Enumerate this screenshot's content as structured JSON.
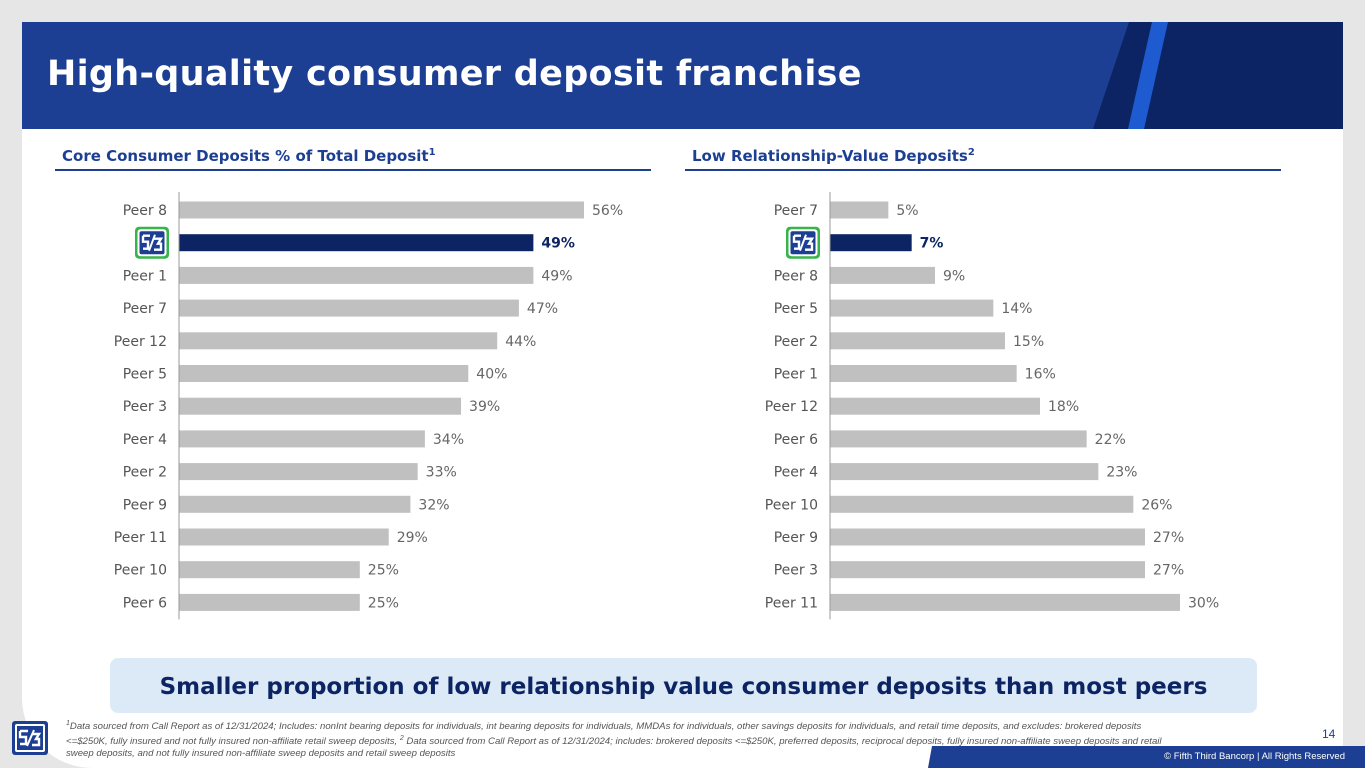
{
  "title": "High-quality consumer deposit franchise",
  "left_section": {
    "title": "Core Consumer Deposits % of Total Deposit",
    "sup": "1"
  },
  "right_section": {
    "title": "Low Relationship-Value Deposits",
    "sup": "2"
  },
  "chart_data": [
    {
      "type": "bar",
      "orientation": "horizontal",
      "title": "Core Consumer Deposits % of Total Deposit",
      "categories": [
        "Peer 8",
        "Fifth Third",
        "Peer 1",
        "Peer 7",
        "Peer 12",
        "Peer 5",
        "Peer 3",
        "Peer 4",
        "Peer 2",
        "Peer 9",
        "Peer 11",
        "Peer 10",
        "Peer 6"
      ],
      "values": [
        56,
        49,
        49,
        47,
        44,
        40,
        39,
        34,
        33,
        32,
        29,
        25,
        25
      ],
      "labels": [
        "56%",
        "49%",
        "49%",
        "47%",
        "44%",
        "40%",
        "39%",
        "34%",
        "33%",
        "32%",
        "29%",
        "25%",
        "25%"
      ],
      "highlight_index": 1,
      "xlim": [
        0,
        56
      ]
    },
    {
      "type": "bar",
      "orientation": "horizontal",
      "title": "Low Relationship-Value Deposits",
      "categories": [
        "Peer 7",
        "Fifth Third",
        "Peer 8",
        "Peer 5",
        "Peer 2",
        "Peer 1",
        "Peer 12",
        "Peer 6",
        "Peer 4",
        "Peer 10",
        "Peer 9",
        "Peer 3",
        "Peer 11"
      ],
      "values": [
        5,
        7,
        9,
        14,
        15,
        16,
        18,
        22,
        23,
        26,
        27,
        27,
        30
      ],
      "labels": [
        "5%",
        "7%",
        "9%",
        "14%",
        "15%",
        "16%",
        "18%",
        "22%",
        "23%",
        "26%",
        "27%",
        "27%",
        "30%"
      ],
      "highlight_index": 1,
      "xlim": [
        0,
        30
      ]
    }
  ],
  "colors": {
    "primary": "#1c3f94",
    "dark": "#0c2463",
    "bar": "#c0c0c0",
    "highlight": "#0c2463",
    "logo_green": "#38b54a"
  },
  "banner": "Smaller proportion of low relationship value consumer deposits than most peers",
  "footnote": {
    "sup1": "1",
    "part1": "Data sourced from Call Report as of 12/31/2024; Includes: nonInt bearing deposits for individuals, int bearing deposits for individuals, MMDAs for individuals, other savings deposits for individuals, and retail time deposits, and excludes: brokered deposits <=$250K, fully insured and not fully insured non-affiliate retail sweep deposits, ",
    "sup2": "2",
    "part2": " Data sourced from Call Report as of 12/31/2024; includes: brokered deposits <=$250K, preferred deposits, reciprocal deposits, fully insured non-affiliate sweep deposits and retail sweep deposits, and not fully insured non-affiliate sweep deposits and retail sweep deposits"
  },
  "page_number": "14",
  "copyright": "© Fifth Third Bancorp | All Rights Reserved",
  "logo_icon": "fifth-third-logo"
}
